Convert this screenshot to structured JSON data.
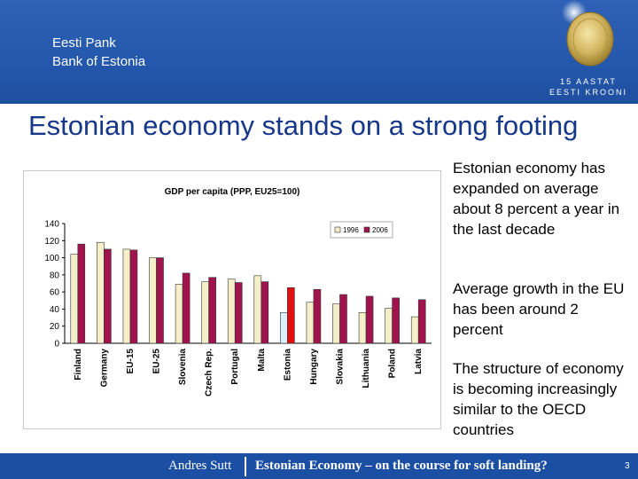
{
  "header": {
    "bank_name_et": "Eesti Pank",
    "bank_name_en": "Bank of Estonia",
    "logo": {
      "icon": "kroon-coin-logo",
      "line1": "15 AASTAT",
      "line2": "EESTI KROONI"
    }
  },
  "slide": {
    "title": "Estonian economy stands on a strong footing",
    "bullets": [
      "Estonian economy has expanded on average about 8 percent a year in the last decade",
      "Average growth in the EU has been around 2 percent",
      "The structure of economy is becoming increasingly similar to the OECD countries"
    ]
  },
  "chart_data": {
    "type": "bar",
    "title": "GDP per capita (PPP, EU25=100)",
    "categories": [
      "Finland",
      "Germany",
      "EU-15",
      "EU-25",
      "Slovenia",
      "Czech Rep.",
      "Portugal",
      "Malta",
      "Estonia",
      "Hungary",
      "Slovakia",
      "Lithuania",
      "Poland",
      "Latvia"
    ],
    "series": [
      {
        "name": "1996",
        "values": [
          104,
          118,
          110,
          100,
          69,
          72,
          75,
          79,
          36,
          48,
          46,
          36,
          41,
          31
        ],
        "color": "#f5efc9",
        "highlight_color": "#dbefff"
      },
      {
        "name": "2006",
        "values": [
          116,
          110,
          109,
          100,
          82,
          77,
          71,
          72,
          65,
          63,
          57,
          55,
          53,
          51
        ],
        "color": "#a0134d",
        "highlight_color": "#e01010"
      }
    ],
    "highlight_category": "Estonia",
    "ylim": [
      0,
      140
    ],
    "yticks": [
      0,
      20,
      40,
      60,
      80,
      100,
      120,
      140
    ],
    "legend_position": "top-right",
    "grid": false
  },
  "footer": {
    "author": "Andres Sutt",
    "title": "Estonian Economy – on the course for soft landing?",
    "page_number": "3"
  },
  "colors": {
    "header_blue": "#2458ad",
    "title_blue": "#16378a",
    "footer_blue": "#1b4fa3"
  }
}
